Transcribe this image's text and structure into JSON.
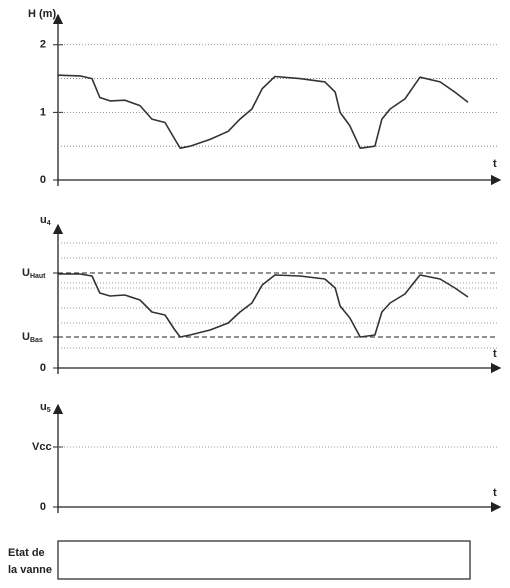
{
  "chart_data": [
    {
      "type": "line",
      "title": "H (m)",
      "x_label": "t",
      "x": [
        0,
        5.4,
        8.3,
        10.2,
        12.7,
        16.3,
        20,
        22.9,
        26.1,
        28.5,
        29.8,
        32.2,
        37.1,
        41.5,
        44.4,
        47.3,
        49.8,
        52.9,
        59,
        65.1,
        67.6,
        68.8,
        71.2,
        73.7,
        77.3,
        79,
        81,
        84.6,
        88.3,
        93.2,
        96.8,
        100
      ],
      "values": [
        1.55,
        1.54,
        1.5,
        1.22,
        1.17,
        1.18,
        1.1,
        0.9,
        0.85,
        0.6,
        0.47,
        0.5,
        0.6,
        0.72,
        0.9,
        1.05,
        1.35,
        1.53,
        1.5,
        1.45,
        1.3,
        1.0,
        0.8,
        0.47,
        0.5,
        0.9,
        1.05,
        1.2,
        1.52,
        1.45,
        1.3,
        1.15
      ],
      "color": "#333333",
      "xlim": [
        0,
        107.8
      ],
      "ylim": [
        0,
        2.44
      ],
      "yticks": [
        0,
        1,
        2
      ],
      "minor_yticks": [
        0.5,
        1.5
      ],
      "grid": true
    },
    {
      "type": "line",
      "title": "u",
      "title_subscript": "4",
      "x_label": "t",
      "x": [
        0,
        5.4,
        8.3,
        10.2,
        12.7,
        16.3,
        20,
        22.9,
        26.1,
        28.5,
        29.8,
        32.2,
        37.1,
        41.5,
        44.4,
        47.3,
        49.8,
        52.9,
        59,
        65.1,
        67.6,
        68.8,
        71.2,
        73.7,
        77.3,
        79,
        81,
        84.6,
        88.3,
        93.2,
        96.8,
        100
      ],
      "values": [
        0.94,
        0.94,
        0.92,
        0.75,
        0.72,
        0.73,
        0.68,
        0.56,
        0.53,
        0.38,
        0.31,
        0.33,
        0.38,
        0.45,
        0.56,
        0.65,
        0.83,
        0.93,
        0.92,
        0.89,
        0.8,
        0.62,
        0.5,
        0.31,
        0.33,
        0.56,
        0.65,
        0.74,
        0.93,
        0.89,
        0.8,
        0.71
      ],
      "color": "#333333",
      "xlim": [
        0,
        107.8
      ],
      "ylim": [
        0,
        1.43
      ],
      "yticks": [
        0,
        {
          "value": 0.95,
          "label": "U",
          "subscript": "Haut"
        },
        {
          "value": 0.31,
          "label": "U",
          "subscript": "Bas"
        }
      ],
      "minor_yticks": [
        0.2,
        0.45,
        0.6,
        0.8,
        0.85,
        1.1,
        1.25
      ],
      "grid": true,
      "threshold_style": "dashed"
    },
    {
      "type": "line",
      "title": "u",
      "title_subscript": "5",
      "x_label": "t",
      "ylim": [
        0,
        1.7
      ],
      "yticks": [
        0,
        {
          "value": 1,
          "label": "Vcc"
        }
      ],
      "grid": true
    }
  ],
  "state_row": {
    "label": [
      "Etat de",
      "la vanne"
    ]
  }
}
